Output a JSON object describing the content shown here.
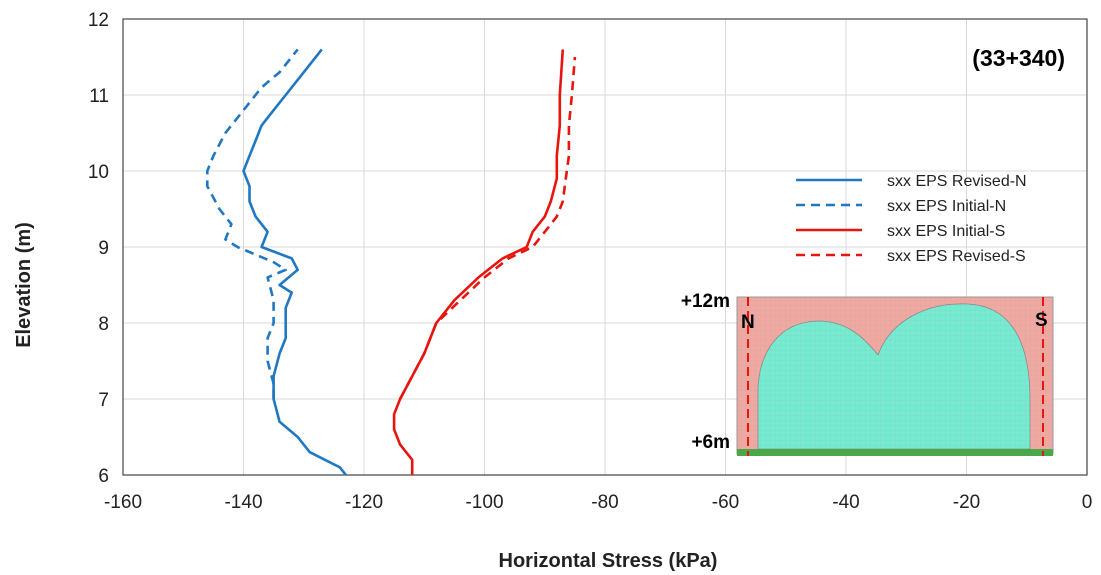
{
  "chart_data": {
    "type": "line",
    "title": "",
    "annotation": "(33+340)",
    "xlabel": "Horizontal Stress (kPa)",
    "ylabel": "Elevation (m)",
    "xlim": [
      -160,
      0
    ],
    "ylim": [
      6,
      12
    ],
    "xticks": [
      "-160",
      "-140",
      "-120",
      "-100",
      "-80",
      "-60",
      "-40",
      "-20",
      "0"
    ],
    "yticks": [
      "6",
      "7",
      "8",
      "9",
      "10",
      "11",
      "12"
    ],
    "grid": true,
    "legend_position": "right",
    "series": [
      {
        "name": "sxx EPS Revised-N",
        "color": "#1f78c1",
        "dash": "solid",
        "points": [
          [
            -123,
            6.0
          ],
          [
            -124,
            6.1
          ],
          [
            -129,
            6.3
          ],
          [
            -131,
            6.5
          ],
          [
            -134,
            6.7
          ],
          [
            -135,
            7.0
          ],
          [
            -135,
            7.3
          ],
          [
            -134,
            7.6
          ],
          [
            -133,
            7.8
          ],
          [
            -133,
            8.0
          ],
          [
            -133,
            8.2
          ],
          [
            -132,
            8.4
          ],
          [
            -134,
            8.5
          ],
          [
            -131,
            8.7
          ],
          [
            -132,
            8.85
          ],
          [
            -137,
            9.0
          ],
          [
            -136,
            9.2
          ],
          [
            -138,
            9.4
          ],
          [
            -139,
            9.6
          ],
          [
            -139,
            9.8
          ],
          [
            -140,
            10.0
          ],
          [
            -139,
            10.2
          ],
          [
            -138,
            10.4
          ],
          [
            -137,
            10.6
          ],
          [
            -135,
            10.8
          ],
          [
            -133,
            11.0
          ],
          [
            -130,
            11.3
          ],
          [
            -127,
            11.6
          ]
        ]
      },
      {
        "name": "sxx EPS Initial-N",
        "color": "#1f78c1",
        "dash": "dashed",
        "points": [
          [
            -135,
            7.0
          ],
          [
            -135,
            7.2
          ],
          [
            -136,
            7.5
          ],
          [
            -136,
            7.8
          ],
          [
            -135,
            8.0
          ],
          [
            -135,
            8.3
          ],
          [
            -136,
            8.6
          ],
          [
            -133,
            8.7
          ],
          [
            -135,
            8.8
          ],
          [
            -141,
            9.0
          ],
          [
            -143,
            9.1
          ],
          [
            -142,
            9.3
          ],
          [
            -144,
            9.5
          ],
          [
            -146,
            9.8
          ],
          [
            -146,
            10.0
          ],
          [
            -145,
            10.2
          ],
          [
            -143,
            10.5
          ],
          [
            -140,
            10.8
          ],
          [
            -137,
            11.1
          ],
          [
            -134,
            11.3
          ],
          [
            -131,
            11.6
          ]
        ]
      },
      {
        "name": "sxx EPS Initial-S",
        "color": "#e8150f",
        "dash": "solid",
        "points": [
          [
            -112,
            6.0
          ],
          [
            -112,
            6.2
          ],
          [
            -114,
            6.4
          ],
          [
            -115,
            6.6
          ],
          [
            -115,
            6.8
          ],
          [
            -114,
            7.0
          ],
          [
            -112,
            7.3
          ],
          [
            -110,
            7.6
          ],
          [
            -108,
            8.0
          ],
          [
            -105,
            8.3
          ],
          [
            -101,
            8.6
          ],
          [
            -97,
            8.85
          ],
          [
            -93,
            9.0
          ],
          [
            -92,
            9.2
          ],
          [
            -90,
            9.4
          ],
          [
            -89,
            9.6
          ],
          [
            -88,
            9.9
          ],
          [
            -88,
            10.2
          ],
          [
            -87.5,
            10.6
          ],
          [
            -87.5,
            11.0
          ],
          [
            -87,
            11.6
          ]
        ]
      },
      {
        "name": "sxx EPS Revised-S",
        "color": "#e8150f",
        "dash": "dashed",
        "points": [
          [
            -114,
            7.0
          ],
          [
            -112,
            7.3
          ],
          [
            -110,
            7.6
          ],
          [
            -108,
            8.0
          ],
          [
            -104,
            8.3
          ],
          [
            -100,
            8.6
          ],
          [
            -96,
            8.85
          ],
          [
            -92,
            9.0
          ],
          [
            -90,
            9.2
          ],
          [
            -88,
            9.4
          ],
          [
            -87,
            9.6
          ],
          [
            -86.5,
            9.9
          ],
          [
            -86,
            10.2
          ],
          [
            -86,
            10.6
          ],
          [
            -85.5,
            11.0
          ],
          [
            -85,
            11.5
          ]
        ]
      }
    ],
    "inset": {
      "top_label": "+12m",
      "bottom_label": "+6m",
      "left_label": "N",
      "right_label": "S",
      "colors": {
        "fill": "#f0a8a0",
        "blob": "#74ecd2",
        "base": "#4aa84a",
        "line": "#e8150f"
      }
    }
  }
}
